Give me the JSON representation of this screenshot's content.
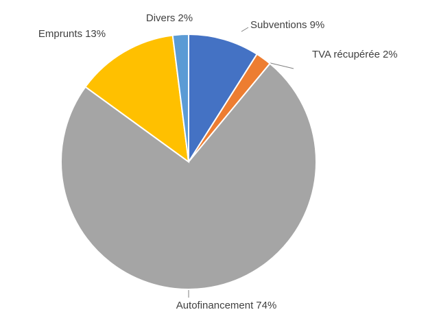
{
  "chart_data": {
    "type": "pie",
    "categories": [
      "Subventions",
      "TVA récupérée",
      "Autofinancement",
      "Emprunts",
      "Divers"
    ],
    "values": [
      9,
      2,
      74,
      13,
      2
    ],
    "value_labels": [
      "9%",
      "2%",
      "74%",
      "13%",
      "2%"
    ],
    "colors": [
      "#4472c4",
      "#ed7d31",
      "#a5a5a5",
      "#ffc000",
      "#5b9bd5"
    ]
  }
}
